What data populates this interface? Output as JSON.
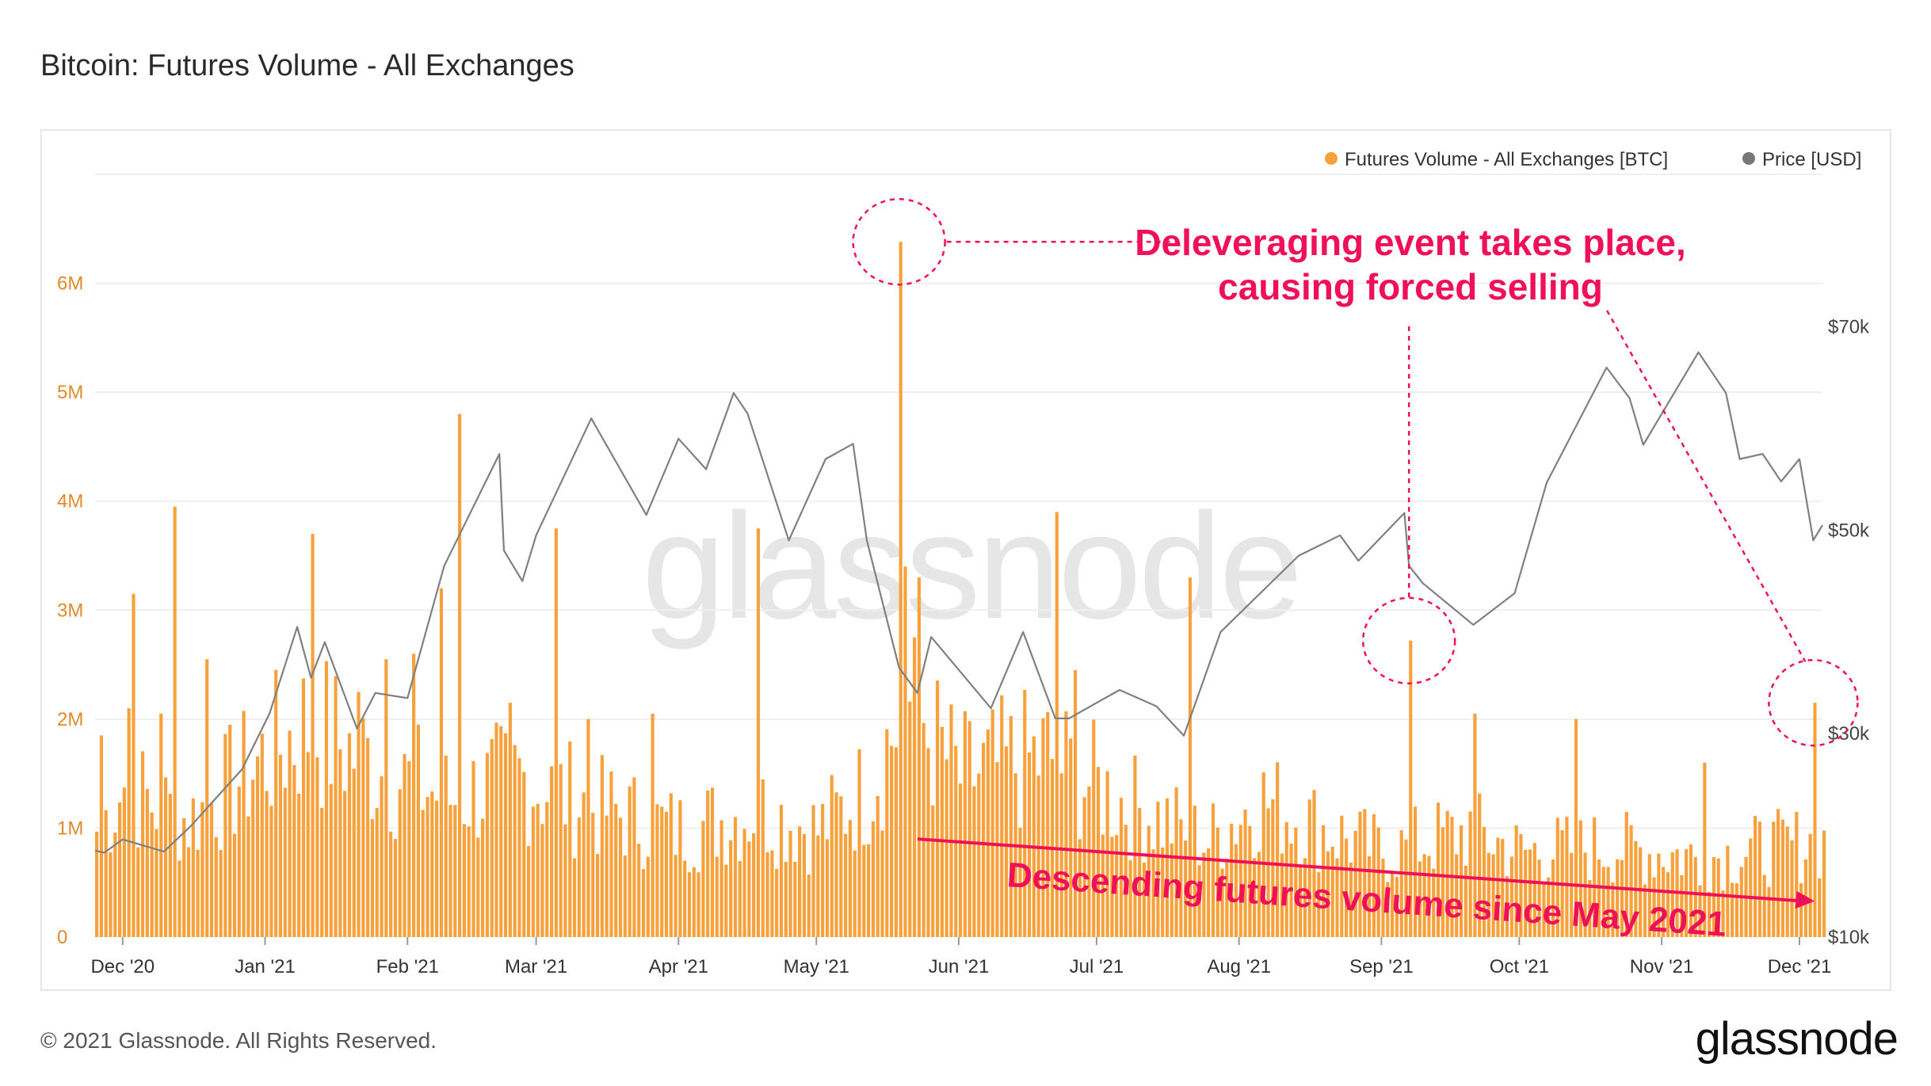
{
  "header": {
    "title": "Bitcoin: Futures Volume - All Exchanges"
  },
  "footer": {
    "copyright": "© 2021 Glassnode. All Rights Reserved.",
    "brand": "glassnode"
  },
  "watermark": "glassnode",
  "colors": {
    "volume": "#f7a13c",
    "price": "#808080",
    "annotation": "#f0105a",
    "circle_fill": "#f7c6d8"
  },
  "chart_data": {
    "type": "bar",
    "legend": {
      "position": "top-right",
      "entries": [
        "Futures Volume - All Exchanges [BTC]",
        "Price [USD]"
      ]
    },
    "x_axis": {
      "start": "2020-11-25",
      "end": "2021-12-06",
      "ticks": [
        {
          "date": "2020-12-01",
          "label": "Dec '20"
        },
        {
          "date": "2021-01-01",
          "label": "Jan '21"
        },
        {
          "date": "2021-02-01",
          "label": "Feb '21"
        },
        {
          "date": "2021-03-01",
          "label": "Mar '21"
        },
        {
          "date": "2021-04-01",
          "label": "Apr '21"
        },
        {
          "date": "2021-05-01",
          "label": "May '21"
        },
        {
          "date": "2021-06-01",
          "label": "Jun '21"
        },
        {
          "date": "2021-07-01",
          "label": "Jul '21"
        },
        {
          "date": "2021-08-01",
          "label": "Aug '21"
        },
        {
          "date": "2021-09-01",
          "label": "Sep '21"
        },
        {
          "date": "2021-10-01",
          "label": "Oct '21"
        },
        {
          "date": "2021-11-01",
          "label": "Nov '21"
        },
        {
          "date": "2021-12-01",
          "label": "Dec '21"
        }
      ]
    },
    "y_left": {
      "name": "Futures Volume - All Exchanges [BTC]",
      "min": 0,
      "max": 7000000,
      "ticks": [
        {
          "v": 0,
          "label": "0"
        },
        {
          "v": 1000000,
          "label": "1M"
        },
        {
          "v": 2000000,
          "label": "2M"
        },
        {
          "v": 3000000,
          "label": "3M"
        },
        {
          "v": 4000000,
          "label": "4M"
        },
        {
          "v": 5000000,
          "label": "5M"
        },
        {
          "v": 6000000,
          "label": "6M"
        }
      ]
    },
    "y_right": {
      "name": "Price [USD]",
      "min": 10000,
      "max": 85000,
      "ticks": [
        {
          "v": 10000,
          "label": "$10k"
        },
        {
          "v": 30000,
          "label": "$30k"
        },
        {
          "v": 50000,
          "label": "$50k"
        },
        {
          "v": 70000,
          "label": "$70k"
        }
      ]
    },
    "volume_series": {
      "name": "Futures Volume - All Exchanges [BTC]",
      "base_points": [
        [
          "2020-11-25",
          1000000
        ],
        [
          "2020-12-01",
          1400000
        ],
        [
          "2020-12-15",
          1100000
        ],
        [
          "2021-01-01",
          1700000
        ],
        [
          "2021-01-10",
          2000000
        ],
        [
          "2021-01-25",
          1600000
        ],
        [
          "2021-02-10",
          1300000
        ],
        [
          "2021-02-25",
          1500000
        ],
        [
          "2021-03-15",
          1200000
        ],
        [
          "2021-04-01",
          1000000
        ],
        [
          "2021-04-18",
          1200000
        ],
        [
          "2021-05-01",
          1000000
        ],
        [
          "2021-05-12",
          1400000
        ],
        [
          "2021-05-20",
          2200000
        ],
        [
          "2021-06-01",
          1500000
        ],
        [
          "2021-06-20",
          1700000
        ],
        [
          "2021-07-05",
          1300000
        ],
        [
          "2021-07-25",
          900000
        ],
        [
          "2021-08-05",
          1300000
        ],
        [
          "2021-08-20",
          1000000
        ],
        [
          "2021-09-01",
          800000
        ],
        [
          "2021-09-20",
          1000000
        ],
        [
          "2021-10-01",
          800000
        ],
        [
          "2021-10-20",
          850000
        ],
        [
          "2021-11-10",
          750000
        ],
        [
          "2021-12-06",
          900000
        ]
      ],
      "spikes": [
        {
          "date": "2020-11-26",
          "value": 1850000
        },
        {
          "date": "2020-12-02",
          "value": 2100000
        },
        {
          "date": "2020-12-03",
          "value": 3150000
        },
        {
          "date": "2020-12-09",
          "value": 2050000
        },
        {
          "date": "2020-12-12",
          "value": 3950000
        },
        {
          "date": "2020-12-19",
          "value": 2550000
        },
        {
          "date": "2021-01-11",
          "value": 3700000
        },
        {
          "date": "2021-01-21",
          "value": 2250000
        },
        {
          "date": "2021-01-27",
          "value": 2550000
        },
        {
          "date": "2021-02-02",
          "value": 2600000
        },
        {
          "date": "2021-02-08",
          "value": 3200000
        },
        {
          "date": "2021-02-12",
          "value": 4800000
        },
        {
          "date": "2021-02-23",
          "value": 2150000
        },
        {
          "date": "2021-03-05",
          "value": 3750000
        },
        {
          "date": "2021-03-12",
          "value": 2000000
        },
        {
          "date": "2021-03-26",
          "value": 2050000
        },
        {
          "date": "2021-04-18",
          "value": 3750000
        },
        {
          "date": "2021-05-19",
          "value": 6380000
        },
        {
          "date": "2021-05-20",
          "value": 3400000
        },
        {
          "date": "2021-05-23",
          "value": 3300000
        },
        {
          "date": "2021-06-22",
          "value": 3900000
        },
        {
          "date": "2021-06-26",
          "value": 2450000
        },
        {
          "date": "2021-07-21",
          "value": 3300000
        },
        {
          "date": "2021-09-07",
          "value": 2720000
        },
        {
          "date": "2021-09-21",
          "value": 2050000
        },
        {
          "date": "2021-10-13",
          "value": 2000000
        },
        {
          "date": "2021-11-10",
          "value": 1600000
        },
        {
          "date": "2021-12-04",
          "value": 2150000
        }
      ]
    },
    "price_series": {
      "name": "Price [USD]",
      "points": [
        [
          "2020-11-25",
          18500
        ],
        [
          "2020-11-27",
          18300
        ],
        [
          "2020-12-01",
          19600
        ],
        [
          "2020-12-10",
          18400
        ],
        [
          "2020-12-16",
          21000
        ],
        [
          "2020-12-20",
          23000
        ],
        [
          "2020-12-27",
          26500
        ],
        [
          "2021-01-02",
          32000
        ],
        [
          "2021-01-08",
          40500
        ],
        [
          "2021-01-11",
          35500
        ],
        [
          "2021-01-14",
          39000
        ],
        [
          "2021-01-21",
          30500
        ],
        [
          "2021-01-25",
          34000
        ],
        [
          "2021-02-01",
          33500
        ],
        [
          "2021-02-09",
          46500
        ],
        [
          "2021-02-21",
          57500
        ],
        [
          "2021-02-22",
          48000
        ],
        [
          "2021-02-26",
          45000
        ],
        [
          "2021-03-01",
          49500
        ],
        [
          "2021-03-13",
          61000
        ],
        [
          "2021-03-25",
          51500
        ],
        [
          "2021-04-01",
          59000
        ],
        [
          "2021-04-07",
          56000
        ],
        [
          "2021-04-13",
          63500
        ],
        [
          "2021-04-16",
          61500
        ],
        [
          "2021-04-25",
          49000
        ],
        [
          "2021-05-03",
          57000
        ],
        [
          "2021-05-09",
          58500
        ],
        [
          "2021-05-12",
          49000
        ],
        [
          "2021-05-19",
          36500
        ],
        [
          "2021-05-23",
          34000
        ],
        [
          "2021-05-26",
          39500
        ],
        [
          "2021-06-08",
          32500
        ],
        [
          "2021-06-15",
          40000
        ],
        [
          "2021-06-22",
          31500
        ],
        [
          "2021-06-25",
          31500
        ],
        [
          "2021-07-06",
          34300
        ],
        [
          "2021-07-14",
          32700
        ],
        [
          "2021-07-20",
          29800
        ],
        [
          "2021-07-28",
          40000
        ],
        [
          "2021-08-14",
          47500
        ],
        [
          "2021-08-23",
          49500
        ],
        [
          "2021-08-27",
          47000
        ],
        [
          "2021-09-06",
          51700
        ],
        [
          "2021-09-07",
          46500
        ],
        [
          "2021-09-10",
          44800
        ],
        [
          "2021-09-21",
          40700
        ],
        [
          "2021-09-30",
          43800
        ],
        [
          "2021-10-07",
          54700
        ],
        [
          "2021-10-20",
          66000
        ],
        [
          "2021-10-25",
          63000
        ],
        [
          "2021-10-28",
          58400
        ],
        [
          "2021-11-09",
          67500
        ],
        [
          "2021-11-15",
          63500
        ],
        [
          "2021-11-18",
          57000
        ],
        [
          "2021-11-23",
          57500
        ],
        [
          "2021-11-27",
          54800
        ],
        [
          "2021-12-01",
          57000
        ],
        [
          "2021-12-04",
          49000
        ],
        [
          "2021-12-06",
          50500
        ]
      ]
    },
    "annotations": [
      {
        "id": "deleveraging",
        "text_lines": [
          "Deleveraging event takes place,",
          "causing forced selling"
        ]
      },
      {
        "id": "descending",
        "text": "Descending futures volume since May 2021",
        "from_date": "2021-05-23",
        "from_value": 900000,
        "to_date": "2021-12-06",
        "to_value": 330000
      }
    ],
    "highlight_circles": [
      {
        "date": "2021-05-19",
        "value": 6380000
      },
      {
        "date": "2021-09-07",
        "value": 2720000
      },
      {
        "date": "2021-12-04",
        "value": 2150000
      }
    ]
  }
}
